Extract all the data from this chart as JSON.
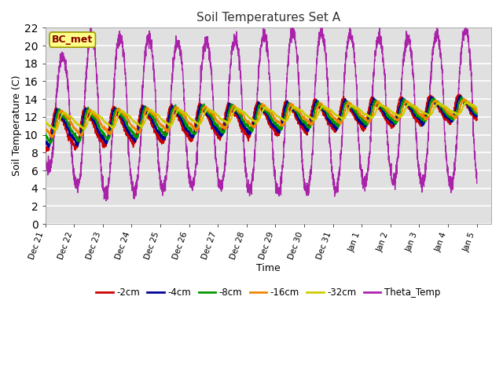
{
  "title": "Soil Temperatures Set A",
  "xlabel": "Time",
  "ylabel": "Soil Temperature (C)",
  "ylim": [
    0,
    22
  ],
  "annotation": "BC_met",
  "background_color": "#ffffff",
  "plot_bg_color": "#e0e0e0",
  "grid_color": "#ffffff",
  "series": [
    {
      "label": "-2cm",
      "color": "#cc0000",
      "lw": 1.2
    },
    {
      "label": "-4cm",
      "color": "#000099",
      "lw": 1.2
    },
    {
      "label": "-8cm",
      "color": "#009900",
      "lw": 1.2
    },
    {
      "label": "-16cm",
      "color": "#ee8800",
      "lw": 1.2
    },
    {
      "label": "-32cm",
      "color": "#cccc00",
      "lw": 1.2
    },
    {
      "label": "Theta_Temp",
      "color": "#aa22aa",
      "lw": 1.0
    }
  ],
  "tick_labels": [
    "Dec 21",
    "Dec 22",
    "Dec 23",
    "Dec 24",
    "Dec 25",
    "Dec 26",
    "Dec 27",
    "Dec 28",
    "Dec 29",
    "Dec 30",
    "Dec 31",
    "Jan 1",
    "Jan 2",
    "Jan 3",
    "Jan 4",
    "Jan 5"
  ],
  "tick_positions": [
    0,
    1,
    2,
    3,
    4,
    5,
    6,
    7,
    8,
    9,
    10,
    11,
    12,
    13,
    14,
    15
  ]
}
